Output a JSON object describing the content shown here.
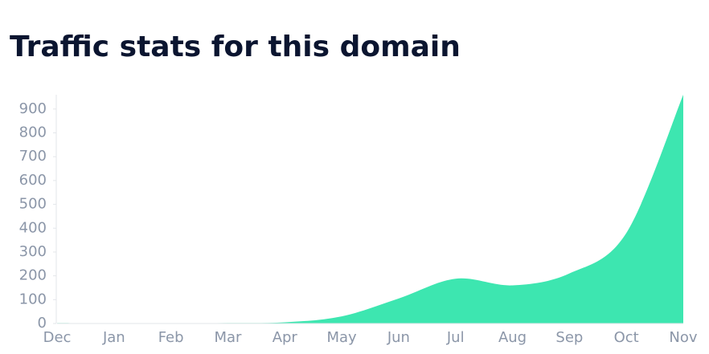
{
  "chart_data": {
    "type": "area",
    "title": "Traffic stats for this domain",
    "categories": [
      "Dec",
      "Jan",
      "Feb",
      "Mar",
      "Apr",
      "May",
      "Jun",
      "Jul",
      "Aug",
      "Sep",
      "Oct",
      "Nov"
    ],
    "values": [
      2,
      1,
      1,
      2,
      5,
      30,
      105,
      188,
      160,
      210,
      380,
      960
    ],
    "color": "#3de6b0",
    "ylim": [
      0,
      960
    ],
    "yticks": [
      0,
      100,
      200,
      300,
      400,
      500,
      600,
      700,
      800,
      900
    ]
  }
}
